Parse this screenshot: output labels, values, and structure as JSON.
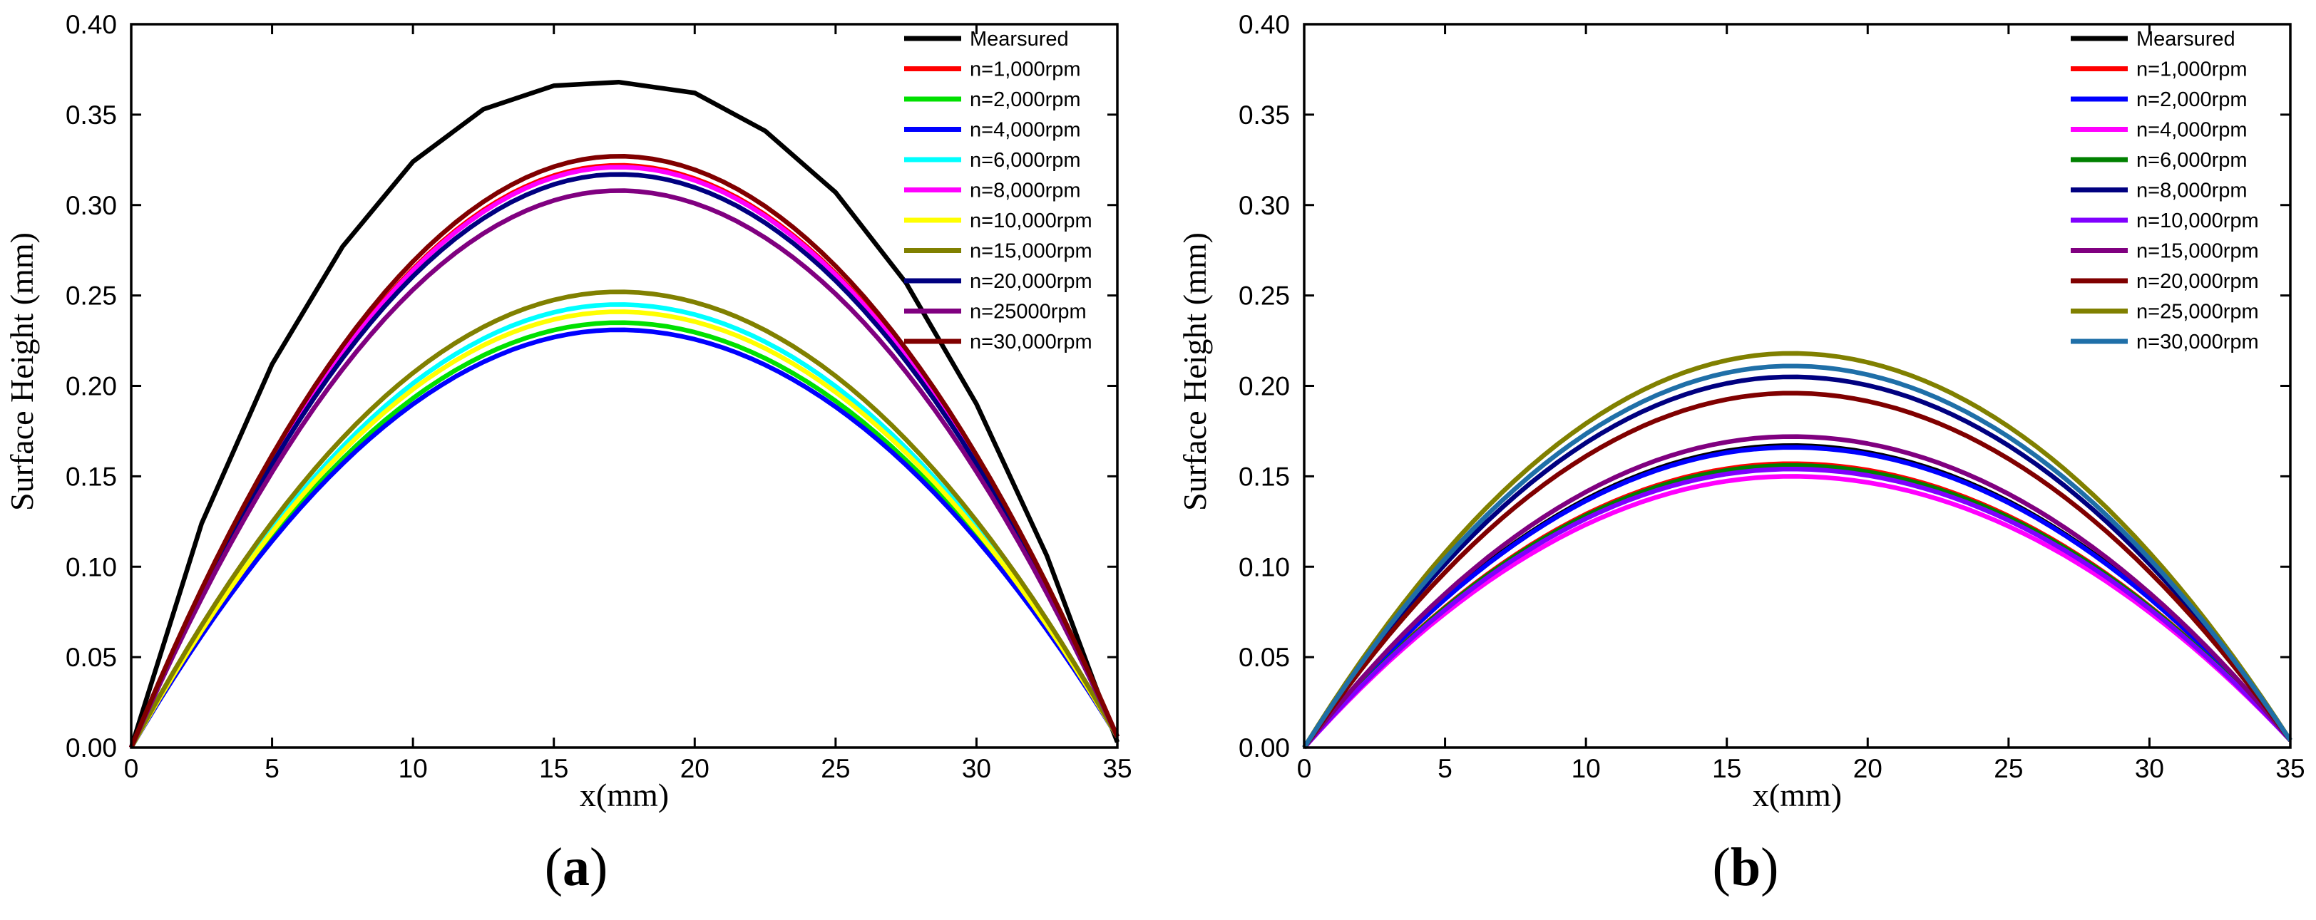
{
  "chart_data": [
    {
      "type": "line",
      "panel_label": {
        "open": "(",
        "letter": "a",
        "close": ")"
      },
      "xlabel": "x(mm)",
      "ylabel": "Surface Height (mm)",
      "xlim": [
        0,
        35
      ],
      "ylim": [
        0,
        0.4
      ],
      "x_ticks": [
        "0",
        "5",
        "10",
        "15",
        "20",
        "25",
        "30",
        "35"
      ],
      "y_ticks": [
        "0.00",
        "0.05",
        "0.10",
        "0.15",
        "0.20",
        "0.25",
        "0.30",
        "0.35",
        "0.40"
      ],
      "legend_position": "top-right",
      "x": [
        0,
        2.5,
        5,
        7.5,
        10,
        12.5,
        15,
        17.3,
        20,
        22.5,
        25,
        27.5,
        30,
        32.5,
        34.2,
        35
      ],
      "series": [
        {
          "name": "Mearsured",
          "color": "#000000",
          "peak": 0.368,
          "end": 0.003,
          "values": [
            0,
            0.124,
            0.212,
            0.277,
            0.324,
            0.353,
            0.366,
            0.368,
            0.362,
            0.341,
            0.307,
            0.257,
            0.19,
            0.106,
            0.035,
            0.003
          ]
        },
        {
          "name": "n=1,000rpm",
          "color": "#ff0000",
          "peak": 0.322,
          "end": 0.006
        },
        {
          "name": "n=2,000rpm",
          "color": "#00e000",
          "peak": 0.235,
          "end": 0.006
        },
        {
          "name": "n=4,000rpm",
          "color": "#0000ff",
          "peak": 0.231,
          "end": 0.006
        },
        {
          "name": "n=6,000rpm",
          "color": "#00ffff",
          "peak": 0.245,
          "end": 0.006
        },
        {
          "name": "n=8,000rpm",
          "color": "#ff00ff",
          "peak": 0.321,
          "end": 0.006
        },
        {
          "name": "n=10,000rpm",
          "color": "#ffff00",
          "peak": 0.241,
          "end": 0.006
        },
        {
          "name": "n=15,000rpm",
          "color": "#808000",
          "peak": 0.252,
          "end": 0.006
        },
        {
          "name": "n=20,000rpm",
          "color": "#000080",
          "peak": 0.317,
          "end": 0.006
        },
        {
          "name": "n=25000rpm",
          "color": "#800080",
          "peak": 0.308,
          "end": 0.006
        },
        {
          "name": "n=30,000rpm",
          "color": "#800000",
          "peak": 0.327,
          "end": 0.006
        }
      ]
    },
    {
      "type": "line",
      "panel_label": {
        "open": "(",
        "letter": "b",
        "close": ")"
      },
      "xlabel": "x(mm)",
      "ylabel": "Surface Height (mm)",
      "xlim": [
        0,
        35
      ],
      "ylim": [
        0,
        0.4
      ],
      "x_ticks": [
        "0",
        "5",
        "10",
        "15",
        "20",
        "25",
        "30",
        "35"
      ],
      "y_ticks": [
        "0.00",
        "0.05",
        "0.10",
        "0.15",
        "0.20",
        "0.25",
        "0.30",
        "0.35",
        "0.40"
      ],
      "legend_position": "top-right",
      "x": [
        0,
        2.5,
        5,
        7.5,
        10,
        12.5,
        15,
        17.3,
        20,
        22.5,
        25,
        27.5,
        30,
        32.5,
        34.2,
        35
      ],
      "series": [
        {
          "name": "Mearsured",
          "color": "#000000",
          "peak": 0.167,
          "end": 0.004
        },
        {
          "name": "n=1,000rpm",
          "color": "#ff0000",
          "peak": 0.157,
          "end": 0.004
        },
        {
          "name": "n=2,000rpm",
          "color": "#0000ff",
          "peak": 0.166,
          "end": 0.004
        },
        {
          "name": "n=4,000rpm",
          "color": "#ff00ff",
          "peak": 0.15,
          "end": 0.004
        },
        {
          "name": "n=6,000rpm",
          "color": "#008000",
          "peak": 0.156,
          "end": 0.004
        },
        {
          "name": "n=8,000rpm",
          "color": "#000080",
          "peak": 0.205,
          "end": 0.004
        },
        {
          "name": "n=10,000rpm",
          "color": "#8000ff",
          "peak": 0.154,
          "end": 0.004
        },
        {
          "name": "n=15,000rpm",
          "color": "#800080",
          "peak": 0.172,
          "end": 0.004
        },
        {
          "name": "n=20,000rpm",
          "color": "#800000",
          "peak": 0.196,
          "end": 0.004
        },
        {
          "name": "n=25,000rpm",
          "color": "#808000",
          "peak": 0.218,
          "end": 0.004
        },
        {
          "name": "n=30,000rpm",
          "color": "#1f6fa8",
          "peak": 0.211,
          "end": 0.004
        }
      ]
    }
  ]
}
